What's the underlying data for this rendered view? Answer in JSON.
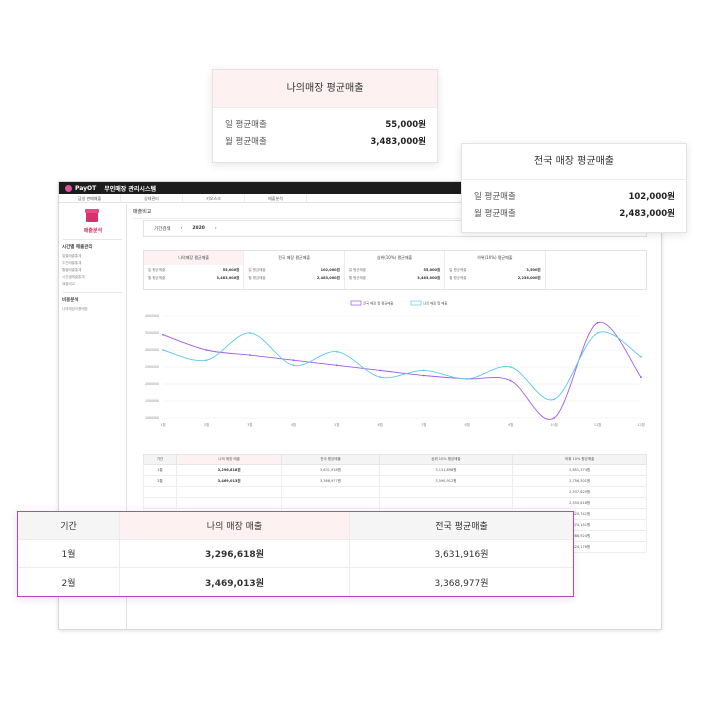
{
  "app": {
    "logo": "PayOT",
    "system_title": "무인매장 관리시스템",
    "topnav": [
      "금일 판매매출",
      "상태관리",
      "키오스크",
      "매출분석"
    ],
    "sidebar": {
      "title": "매출분석",
      "group1": "시간별 매출관리",
      "items1": [
        "일별매출통계",
        "주간매출통계",
        "월별매출통계",
        "시간별매출통계",
        "매출비교"
      ],
      "group2": "비용분석",
      "items2": [
        "나의매장이용매장"
      ]
    },
    "page_title": "매출비교",
    "year_label": "기간검색",
    "year": "2020",
    "prev_icon": "‹",
    "next_icon": "›"
  },
  "stats": [
    {
      "title": "나의매장 평균매출",
      "day_label": "일 평균매출",
      "day": "55,000원",
      "month_label": "월 평균매출",
      "month": "3,483,000원"
    },
    {
      "title": "전국 매장 평균매출",
      "day_label": "일 평균매출",
      "day": "102,000원",
      "month_label": "월 평균매출",
      "month": "2,483,000원"
    },
    {
      "title": "상위(10%) 평균매출",
      "day_label": "일 평균매출",
      "day": "55,000원",
      "month_label": "월 평균매출",
      "month": "3,483,000원"
    },
    {
      "title": "하위(10%) 평균매출",
      "day_label": "일 평균매출",
      "day": "3,500원",
      "month_label": "월 평균매출",
      "month": "2,236,000원"
    }
  ],
  "chart_data": {
    "type": "line",
    "categories": [
      "1월",
      "2월",
      "3월",
      "4월",
      "5월",
      "6월",
      "7월",
      "8월",
      "9월",
      "10월",
      "11월",
      "12월"
    ],
    "ylim": [
      1000000,
      4000000
    ],
    "yticks": [
      "4000000",
      "3500000",
      "3000000",
      "2500000",
      "2000000",
      "1500000",
      "1000000"
    ],
    "series": [
      {
        "name": "전국 매장 월 평균매출",
        "color": "#a35be8",
        "values": [
          3450000,
          3000000,
          2850000,
          2700000,
          2550000,
          2400000,
          2250000,
          2150000,
          2100000,
          1000000,
          3800000,
          2200000
        ]
      },
      {
        "name": "나의 매장 월 매출",
        "color": "#5bc8e8",
        "values": [
          3000000,
          2700000,
          3500000,
          2550000,
          2950000,
          2200000,
          2400000,
          2150000,
          2500000,
          1550000,
          3500000,
          2800000
        ]
      }
    ]
  },
  "bg_table": {
    "headers": [
      "기간",
      "나의 매장 매출",
      "전국 평균매출",
      "상위 10% 평균매출",
      "하위 10% 평균매출"
    ],
    "rows": [
      [
        "1월",
        "3,296,618원",
        "3,631,916원",
        "3,131,898원",
        "2,651,374원"
      ],
      [
        "2월",
        "3,469,013원",
        "3,368,977원",
        "3,590,912원",
        "2,756,301원"
      ],
      [
        "",
        "",
        "",
        "",
        "2,537,625원"
      ],
      [
        "",
        "",
        "",
        "",
        "2,550,618원"
      ],
      [
        "",
        "",
        "",
        "",
        "2,020,741원"
      ],
      [
        "",
        "",
        "",
        "",
        "2,574,151원"
      ],
      [
        "",
        "",
        "",
        "",
        "2,288,924원"
      ],
      [
        "",
        "",
        "",
        "",
        "2,424,176원"
      ]
    ]
  },
  "my_card": {
    "title": "나의매장 평균매출",
    "day_label": "일 평균매출",
    "day_value": "55,000원",
    "month_label": "월 평균매출",
    "month_value": "3,483,000원"
  },
  "nat_card": {
    "title": "전국 매장 평균매출",
    "day_label": "일 평균매출",
    "day_value": "102,000원",
    "month_label": "월 평균매출",
    "month_value": "2,483,000원"
  },
  "big_table": {
    "headers": [
      "기간",
      "나의 매장 매출",
      "전국 평균매출"
    ],
    "rows": [
      [
        "1월",
        "3,296,618원",
        "3,631,916원"
      ],
      [
        "2월",
        "3,469,013원",
        "3,368,977원"
      ]
    ]
  }
}
